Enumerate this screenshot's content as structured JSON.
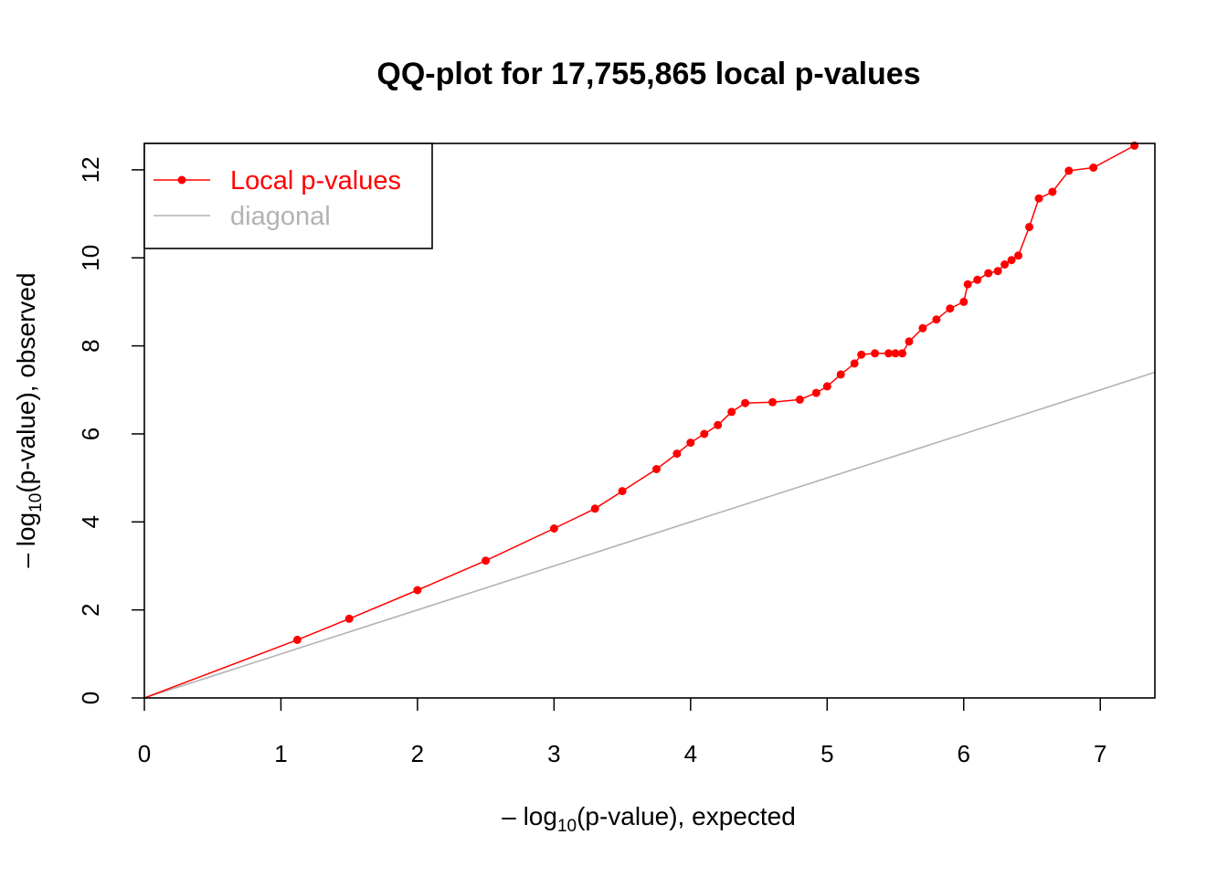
{
  "chart_data": {
    "type": "scatter",
    "title": "QQ-plot for 17,755,865 local p-values",
    "xlabel": {
      "prefix": "– log",
      "sub": "10",
      "suffix": "(p-value), expected"
    },
    "ylabel": {
      "prefix": "– log",
      "sub": "10",
      "suffix": "(p-value), observed"
    },
    "xlim": [
      0,
      7.4
    ],
    "ylim": [
      0,
      12.6
    ],
    "xticks": [
      "0",
      "1",
      "2",
      "3",
      "4",
      "5",
      "6",
      "7"
    ],
    "yticks": [
      "0",
      "2",
      "4",
      "6",
      "8",
      "10",
      "12"
    ],
    "legend_position": "top-left",
    "colors": {
      "observed": "#ff0000",
      "diagonal": "#b3b3b3"
    },
    "series": [
      {
        "name": "Local p-values",
        "style": "points+lines",
        "x": [
          0,
          1.12,
          1.5,
          2.0,
          2.5,
          3.0,
          3.3,
          3.5,
          3.75,
          3.9,
          4.0,
          4.1,
          4.2,
          4.3,
          4.4,
          4.6,
          4.8,
          4.92,
          5.0,
          5.1,
          5.2,
          5.25,
          5.35,
          5.45,
          5.5,
          5.55,
          5.6,
          5.7,
          5.8,
          5.9,
          6.0,
          6.03,
          6.1,
          6.18,
          6.25,
          6.3,
          6.35,
          6.4,
          6.48,
          6.55,
          6.65,
          6.77,
          6.95,
          7.25
        ],
        "y": [
          0,
          1.32,
          1.8,
          2.45,
          3.12,
          3.85,
          4.3,
          4.7,
          5.2,
          5.55,
          5.8,
          6.0,
          6.2,
          6.5,
          6.7,
          6.72,
          6.78,
          6.93,
          7.08,
          7.35,
          7.6,
          7.8,
          7.83,
          7.83,
          7.83,
          7.83,
          8.1,
          8.4,
          8.6,
          8.85,
          9.0,
          9.4,
          9.5,
          9.65,
          9.7,
          9.85,
          9.95,
          10.05,
          10.7,
          11.35,
          11.5,
          11.98,
          12.05,
          12.55
        ]
      },
      {
        "name": "diagonal",
        "style": "line",
        "x": [
          0,
          7.4
        ],
        "y": [
          0,
          7.4
        ]
      }
    ]
  }
}
